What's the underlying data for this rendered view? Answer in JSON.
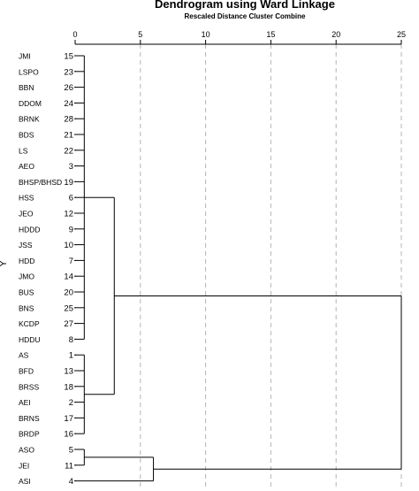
{
  "chart_data": {
    "type": "dendrogram",
    "title": "Dendrogram using Ward Linkage",
    "subtitle": "Rescaled Distance Cluster Combine",
    "ylabel": "Y",
    "xlim": [
      0,
      25
    ],
    "xticks": [
      0,
      5,
      10,
      15,
      20,
      25
    ],
    "leaves": [
      {
        "label": "JMI",
        "id": "15"
      },
      {
        "label": "LSPO",
        "id": "23"
      },
      {
        "label": "BBN",
        "id": "26"
      },
      {
        "label": "DDOM",
        "id": "24"
      },
      {
        "label": "BRNK",
        "id": "28"
      },
      {
        "label": "BDS",
        "id": "21"
      },
      {
        "label": "LS",
        "id": "22"
      },
      {
        "label": "AEO",
        "id": "3"
      },
      {
        "label": "BHSP/BHSD",
        "id": "19"
      },
      {
        "label": "HSS",
        "id": "6"
      },
      {
        "label": "JEO",
        "id": "12"
      },
      {
        "label": "HDDD",
        "id": "9"
      },
      {
        "label": "JSS",
        "id": "10"
      },
      {
        "label": "HDD",
        "id": "7"
      },
      {
        "label": "JMO",
        "id": "14"
      },
      {
        "label": "BUS",
        "id": "20"
      },
      {
        "label": "BNS",
        "id": "25"
      },
      {
        "label": "KCDP",
        "id": "27"
      },
      {
        "label": "HDDU",
        "id": "8"
      },
      {
        "label": "AS",
        "id": "1"
      },
      {
        "label": "BFD",
        "id": "13"
      },
      {
        "label": "BRSS",
        "id": "18"
      },
      {
        "label": "AEI",
        "id": "2"
      },
      {
        "label": "BRNS",
        "id": "17"
      },
      {
        "label": "BRDP",
        "id": "16"
      },
      {
        "label": "ASO",
        "id": "5"
      },
      {
        "label": "JEI",
        "id": "11"
      },
      {
        "label": "ASI",
        "id": "4"
      }
    ],
    "merges": [
      {
        "left": {
          "leaf": 0
        },
        "right": {
          "leaf": 18
        },
        "distance": 0.7
      },
      {
        "left": {
          "leaf": 19
        },
        "right": {
          "leaf": 24
        },
        "distance": 0.7
      },
      {
        "left": {
          "merge": 0
        },
        "right": {
          "merge": 1
        },
        "distance": 3.0
      },
      {
        "left": {
          "leaf": 25
        },
        "right": {
          "leaf": 26
        },
        "distance": 0.7
      },
      {
        "left": {
          "merge": 3
        },
        "right": {
          "leaf": 27
        },
        "distance": 6.0
      },
      {
        "left": {
          "merge": 2
        },
        "right": {
          "merge": 4
        },
        "distance": 25.0
      }
    ],
    "colors": {
      "lines": "#000000",
      "grid": "#b4b4b4"
    }
  }
}
